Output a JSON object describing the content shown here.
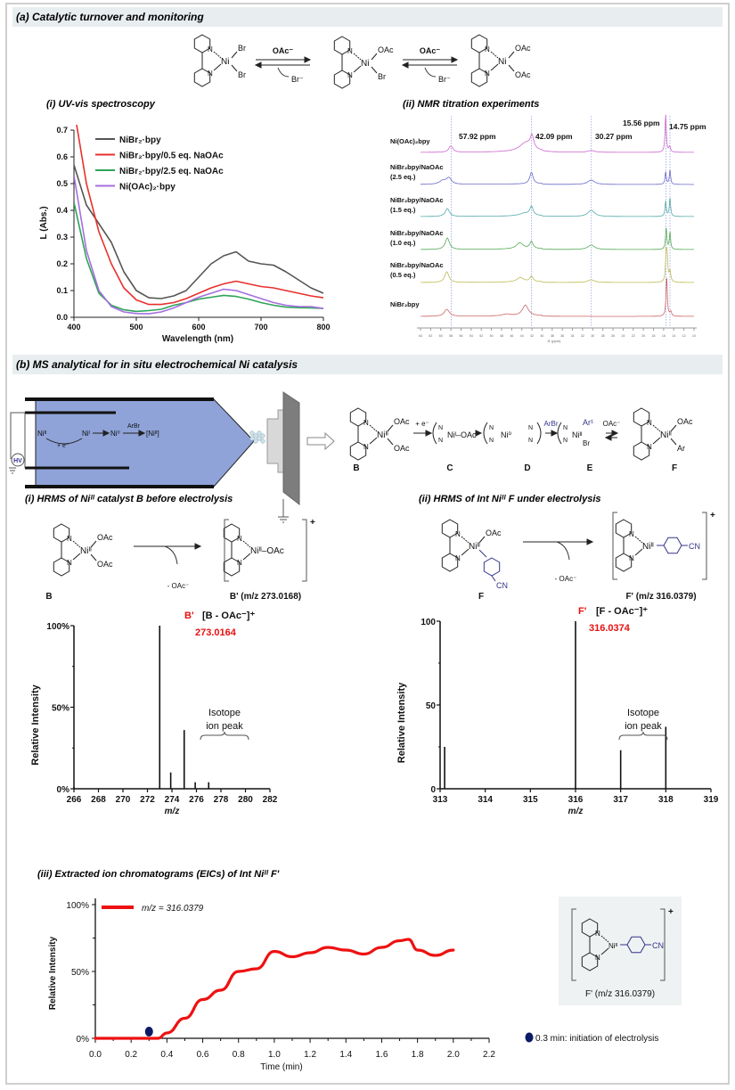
{
  "panel_a": {
    "title": "(a) Catalytic turnover and monitoring",
    "scheme": {
      "n": "N",
      "complexes": [
        {
          "metal": "Ni",
          "ligands": [
            "Br",
            "Br"
          ]
        },
        {
          "metal": "Ni",
          "ligands": [
            "OAc",
            "Br"
          ]
        },
        {
          "metal": "Ni",
          "ligands": [
            "OAc",
            "OAc"
          ]
        }
      ],
      "arrows": [
        {
          "top": "OAc⁻",
          "bottom": "Br⁻"
        },
        {
          "top": "OAc⁻",
          "bottom": "Br⁻"
        }
      ]
    },
    "uv_subtitle": "(i) UV-vis spectroscopy",
    "nmr_subtitle": "(ii) NMR titration experiments"
  },
  "panel_b": {
    "title": "(b) MS analytical for in situ electrochemical Ni catalysis",
    "emitter": {
      "ni2": "Niᴵᴵ",
      "e": "+ e⁻",
      "ni1": "Niᴵ",
      "ni0": "Ni⁰",
      "arbr": "ArBr",
      "ni2b": "[Niᴵᴵ]",
      "hv": "HV"
    },
    "mechanism": {
      "species": [
        {
          "id": "B",
          "metal": "Niᴵᴵ",
          "ligands": [
            "OAc",
            "OAc"
          ]
        },
        {
          "id": "C",
          "text": "Niᴵ–OAc"
        },
        {
          "id": "D",
          "text": "Ni⁰"
        },
        {
          "id": "E",
          "metal": "Niᴵᴵ",
          "ligands": [
            "Ar¹",
            "Br"
          ]
        },
        {
          "id": "F",
          "metal": "Niᴵᴵ",
          "ligands": [
            "OAc",
            "Ar"
          ]
        }
      ],
      "arrows": [
        "+ e⁻",
        "",
        "ArBr",
        "OAc⁻"
      ]
    },
    "hrms_i": {
      "title": "(i) HRMS of Niᴵᴵ catalyst B before electrolysis",
      "reactant": {
        "id": "B",
        "metal": "Niᴵᴵ",
        "ligands": [
          "OAc",
          "OAc"
        ]
      },
      "loss": "- OAc⁻",
      "product": {
        "metal": "Niᴵᴵ–OAc",
        "charge": "+",
        "label": "B' (m/z 273.0168)"
      },
      "peak_tag": "B'",
      "peak_formula": "[B - OAc⁻]⁺",
      "peak_value": "273.0164",
      "isotope": [
        "Isotope",
        "ion peak"
      ]
    },
    "hrms_ii": {
      "title": "(ii) HRMS of  Int Niᴵᴵ F under electrolysis",
      "reactant": {
        "id": "F",
        "metal": "Niᴵᴵ",
        "ligands": [
          "OAc"
        ],
        "aryl": "CN"
      },
      "loss": "- OAc⁻",
      "product": {
        "metal": "Niᴵᴵ",
        "aryl": "CN",
        "charge": "+",
        "label": "F' (m/z 316.0379)"
      },
      "peak_tag": "F'",
      "peak_formula": "[F - OAc⁻]⁺",
      "peak_value": "316.0374",
      "isotope": [
        "Isotope",
        "ion peak"
      ]
    },
    "eic": {
      "title": "(iii) Extracted ion chromatograms (EICs) of Int Niᴵᴵ F'",
      "inset": {
        "metal": "Niᴵᴵ",
        "aryl": "CN",
        "charge": "+",
        "label": "F' (m/z 316.0379)"
      },
      "marker_note": "0.3 min: initiation of electrolysis"
    }
  },
  "chart_data": [
    {
      "id": "uv",
      "type": "line",
      "title": "(i) UV-vis spectroscopy",
      "xlabel": "Wavelength (nm)",
      "ylabel": "L (Abs.)",
      "xlim": [
        400,
        800
      ],
      "ylim": [
        0,
        0.7
      ],
      "xticks": [
        "400",
        "500",
        "600",
        "700",
        "800"
      ],
      "yticks": [
        "0.0",
        "0.1",
        "0.2",
        "0.3",
        "0.4",
        "0.5",
        "0.6",
        "0.7"
      ],
      "legend": "top-left",
      "x": [
        400,
        420,
        440,
        460,
        480,
        500,
        520,
        540,
        560,
        580,
        600,
        620,
        640,
        660,
        680,
        700,
        720,
        740,
        760,
        780,
        800
      ],
      "series": [
        {
          "name": "NiBr₂·bpy",
          "color": "#555555",
          "values": [
            0.57,
            0.42,
            0.35,
            0.28,
            0.17,
            0.1,
            0.073,
            0.07,
            0.08,
            0.1,
            0.15,
            0.2,
            0.23,
            0.245,
            0.21,
            0.2,
            0.195,
            0.17,
            0.14,
            0.11,
            0.09
          ]
        },
        {
          "name": "NiBr₂·bpy/0.5 eq. NaOAc",
          "color": "#e8302c",
          "values": [
            0.78,
            0.5,
            0.32,
            0.2,
            0.11,
            0.065,
            0.048,
            0.048,
            0.055,
            0.07,
            0.09,
            0.11,
            0.125,
            0.135,
            0.125,
            0.115,
            0.11,
            0.1,
            0.09,
            0.08,
            0.073
          ]
        },
        {
          "name": "NiBr₂·bpy/2.5 eq. NaOAc",
          "color": "#2ea35a",
          "values": [
            0.43,
            0.22,
            0.09,
            0.045,
            0.028,
            0.022,
            0.025,
            0.03,
            0.045,
            0.055,
            0.068,
            0.075,
            0.082,
            0.078,
            0.068,
            0.055,
            0.045,
            0.038,
            0.036,
            0.035,
            0.033
          ]
        },
        {
          "name": "Ni(OAc)₂·bpy",
          "color": "#a66ee0",
          "values": [
            0.53,
            0.25,
            0.1,
            0.04,
            0.02,
            0.014,
            0.013,
            0.02,
            0.035,
            0.055,
            0.075,
            0.09,
            0.105,
            0.1,
            0.085,
            0.07,
            0.055,
            0.045,
            0.04,
            0.04,
            0.033
          ]
        }
      ]
    },
    {
      "id": "nmr",
      "type": "line",
      "title": "(ii) NMR titration experiments",
      "xlabel": "f1 (ppm)",
      "xlim": [
        64,
        10
      ],
      "xticks": [
        "64",
        "62",
        "60",
        "58",
        "56",
        "54",
        "52",
        "50",
        "48",
        "46",
        "44",
        "42",
        "40",
        "38",
        "36",
        "34",
        "32",
        "30",
        "28",
        "26",
        "24",
        "22",
        "20",
        "18",
        "16",
        "14",
        "12",
        "10"
      ],
      "markers": [
        {
          "ppm": 57.92,
          "label": "57.92 ppm"
        },
        {
          "ppm": 42.09,
          "label": "42.09 ppm"
        },
        {
          "ppm": 30.27,
          "label": "30.27 ppm"
        },
        {
          "ppm": 15.56,
          "label": "15.56 ppm"
        },
        {
          "ppm": 14.75,
          "label": "14.75 ppm"
        }
      ],
      "series": [
        {
          "name": "Ni(OAc)₂bpy",
          "sub": "",
          "color": "#cc66cc",
          "peaks": [
            [
              58.0,
              7,
              0.5
            ],
            [
              43.2,
              10,
              1.5
            ],
            [
              42.0,
              14,
              0.4
            ],
            [
              30.3,
              2,
              0.8
            ],
            [
              15.6,
              42,
              0.15
            ],
            [
              14.8,
              6,
              0.2
            ]
          ]
        },
        {
          "name": "NiBr₂bpy/NaOAc",
          "sub": "(2.5 eq.)",
          "color": "#6a6acc",
          "peaks": [
            [
              59.6,
              4,
              0.8
            ],
            [
              58.4,
              7,
              0.6
            ],
            [
              42.1,
              13,
              0.4
            ],
            [
              30.3,
              5,
              0.8
            ],
            [
              15.6,
              14,
              0.15
            ],
            [
              14.75,
              16,
              0.15
            ]
          ]
        },
        {
          "name": "NiBr₂bpy/NaOAc",
          "sub": "(1.5 eq.)",
          "color": "#55aaaa",
          "peaks": [
            [
              58.7,
              9,
              0.5
            ],
            [
              43.5,
              3,
              1.2
            ],
            [
              42.1,
              10,
              0.4
            ],
            [
              30.3,
              7,
              0.8
            ],
            [
              15.6,
              17,
              0.15
            ],
            [
              14.75,
              21,
              0.15
            ]
          ]
        },
        {
          "name": "NiBr₂bpy/NaOAc",
          "sub": "(1.0 eq.)",
          "color": "#55aa55",
          "peaks": [
            [
              58.7,
              13,
              0.5
            ],
            [
              44.4,
              7,
              0.8
            ],
            [
              42.1,
              8,
              0.4
            ],
            [
              30.3,
              5,
              0.8
            ],
            [
              15.5,
              24,
              0.15
            ],
            [
              14.75,
              19,
              0.15
            ]
          ]
        },
        {
          "name": "NiBr₂bpy/NaOAc",
          "sub": "(0.5 eq.)",
          "color": "#bbbb55",
          "peaks": [
            [
              58.8,
              12,
              0.5
            ],
            [
              44.3,
              5,
              0.8
            ],
            [
              42.1,
              6,
              0.4
            ],
            [
              30.3,
              3,
              0.8
            ],
            [
              15.5,
              30,
              0.15
            ],
            [
              15.3,
              24,
              0.15
            ],
            [
              14.75,
              12,
              0.2
            ]
          ]
        },
        {
          "name": "NiBr₂bpy",
          "sub": "",
          "color": "#cc6666",
          "peaks": [
            [
              58.8,
              8,
              0.6
            ],
            [
              47.0,
              2,
              1.0
            ],
            [
              43.3,
              12,
              0.7
            ],
            [
              15.4,
              45,
              0.15
            ],
            [
              14.6,
              5,
              0.2
            ]
          ]
        }
      ]
    },
    {
      "id": "ms_b",
      "type": "bar",
      "xlabel": "m/z",
      "ylabel": "Relative Intensity",
      "xlim": [
        266,
        282
      ],
      "ylim": [
        0,
        100
      ],
      "xticks": [
        "266",
        "268",
        "270",
        "272",
        "274",
        "276",
        "278",
        "280",
        "282"
      ],
      "yticks": [
        "0%",
        "50%",
        "100%"
      ],
      "peaks": [
        {
          "mz": 266.0,
          "intensity": 1
        },
        {
          "mz": 273.0,
          "intensity": 100
        },
        {
          "mz": 273.9,
          "intensity": 10
        },
        {
          "mz": 275.0,
          "intensity": 36
        },
        {
          "mz": 275.9,
          "intensity": 4
        },
        {
          "mz": 277.0,
          "intensity": 4
        }
      ]
    },
    {
      "id": "ms_f",
      "type": "bar",
      "xlabel": "m/z",
      "ylabel": "Relative Intensity",
      "xlim": [
        313,
        319
      ],
      "ylim": [
        0,
        100
      ],
      "xticks": [
        "313",
        "314",
        "315",
        "316",
        "317",
        "318",
        "319"
      ],
      "yticks": [
        "0",
        "50",
        "100"
      ],
      "peaks": [
        {
          "mz": 313.1,
          "intensity": 25
        },
        {
          "mz": 316.0,
          "intensity": 100
        },
        {
          "mz": 317.0,
          "intensity": 23
        },
        {
          "mz": 318.0,
          "intensity": 37
        }
      ]
    },
    {
      "id": "eic",
      "type": "line",
      "xlabel": "Time (min)",
      "ylabel": "Relative Intensity",
      "xlim": [
        0,
        2.2
      ],
      "ylim": [
        0,
        100
      ],
      "xticks": [
        "0.0",
        "0.2",
        "0.4",
        "0.6",
        "0.8",
        "1.0",
        "1.2",
        "1.4",
        "1.6",
        "1.8",
        "2.0",
        "2.2"
      ],
      "yticks": [
        "0%",
        "50%",
        "100%"
      ],
      "legend": "top-left",
      "series": [
        {
          "name": "m/z = 316.0379",
          "color": "#ee1111",
          "x": [
            0,
            0.3,
            0.35,
            0.4,
            0.5,
            0.6,
            0.7,
            0.8,
            0.9,
            1.0,
            1.1,
            1.2,
            1.3,
            1.4,
            1.5,
            1.6,
            1.7,
            1.75,
            1.8,
            1.9,
            2.0
          ],
          "values": [
            0,
            0,
            0,
            4,
            15,
            29,
            36,
            50,
            52,
            65,
            61,
            64,
            68,
            66,
            63,
            68,
            73,
            74,
            66,
            62,
            66
          ]
        }
      ],
      "marker": {
        "x": 0.3,
        "y": 5,
        "color": "#0d1a66"
      }
    }
  ]
}
